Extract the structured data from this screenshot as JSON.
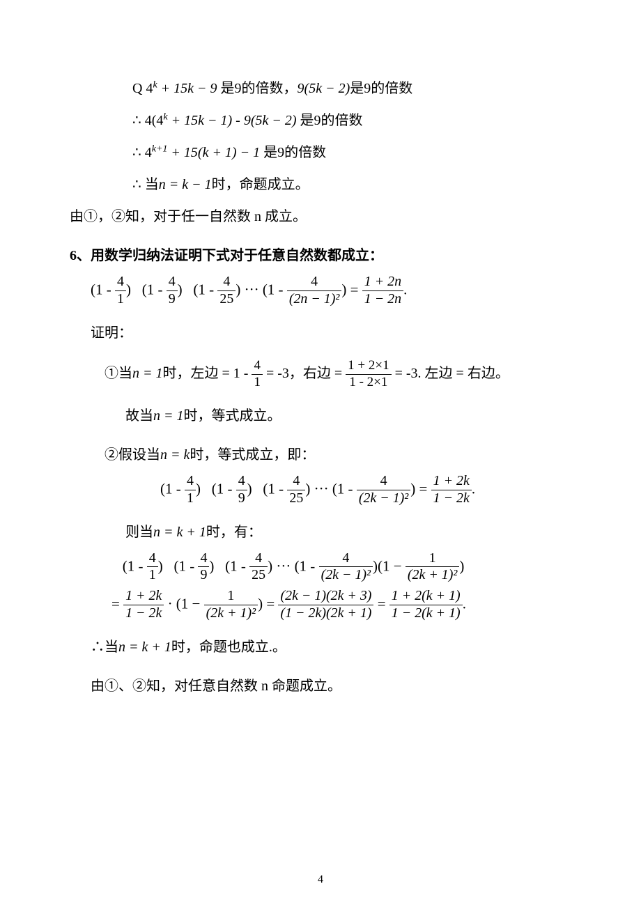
{
  "colors": {
    "background": "#ffffff",
    "text": "#000000",
    "rule": "#000000"
  },
  "typography": {
    "body_font_family": "SimSun, Songti SC, serif",
    "math_font_family": "Times New Roman, serif",
    "body_fontsize_pt": 15,
    "line_height": 1.9
  },
  "page_number": "4",
  "block1": {
    "l1_prefix": "Q",
    "l1_math_a": "4",
    "l1_math_a_sup": "k",
    "l1_math_rest": " + 15k − 9",
    "l1_cn_a": "是9的倍数，",
    "l1_math_b": "9(5k − 2)",
    "l1_cn_b": "是9的倍数",
    "l2_prefix": "∴",
    "l2_math": "4(4",
    "l2_math_sup": "k",
    "l2_math_rest": " + 15k − 1) - 9(5k − 2)   ",
    "l2_cn": "是9的倍数",
    "l3_prefix": "∴",
    "l3_math_a": "4",
    "l3_math_a_sup": "k+1",
    "l3_math_rest": " + 15(k + 1) − 1",
    "l3_cn": "是9的倍数",
    "l4_prefix": "∴",
    "l4_cn_a": "当",
    "l4_math": "n = k − 1",
    "l4_cn_b": "时，命题成立。"
  },
  "conclusion1": "由①，②知，对于任一自然数 n 成立。",
  "q6_title": "6、用数学归纳法证明下式对于任意自然数都成立：",
  "q6_eq": {
    "f1_num": "4",
    "f1_den": "1",
    "f2_num": "4",
    "f2_den": "9",
    "f3_num": "4",
    "f3_den": "25",
    "f4_num": "4",
    "f4_den": "(2n − 1)²",
    "rhs_num": "1 + 2n",
    "rhs_den": "1 − 2n",
    "trail": "."
  },
  "proof_label": "证明：",
  "step1": {
    "prefix": "①当",
    "math_a": "n = 1",
    "cn_a": "时，左边 = 1 - ",
    "f_num": "4",
    "f_den": "1",
    "cn_b": " = -3，右边 = ",
    "rhs_num": "1 + 2×1",
    "rhs_den": "1 - 2×1",
    "cn_c": " = -3. 左边 = 右边。"
  },
  "step1b": {
    "cn_a": "故当",
    "math": "n = 1",
    "cn_b": "时，等式成立。"
  },
  "step2": {
    "prefix": "②假设当",
    "math": "n = k",
    "cn": "时，等式成立，即："
  },
  "step2_eq": {
    "f1_num": "4",
    "f1_den": "1",
    "f2_num": "4",
    "f2_den": "9",
    "f3_num": "4",
    "f3_den": "25",
    "f4_num": "4",
    "f4_den": "(2k − 1)²",
    "rhs_num": "1 + 2k",
    "rhs_den": "1 − 2k",
    "trail": "."
  },
  "step3": {
    "cn_a": "则当",
    "math": "n = k + 1",
    "cn_b": "时，有："
  },
  "step3_eq_l1": {
    "f1_num": "4",
    "f1_den": "1",
    "f2_num": "4",
    "f2_den": "9",
    "f3_num": "4",
    "f3_den": "25",
    "f4_num": "4",
    "f4_den": "(2k − 1)²",
    "f5_num": "1",
    "f5_den": "(2k + 1)²"
  },
  "step3_eq_l2": {
    "fa_num": "1 + 2k",
    "fa_den": "1 − 2k",
    "fb_num": "1",
    "fb_den": "(2k + 1)²",
    "fc_num": "(2k − 1)(2k + 3)",
    "fc_den": "(1 − 2k)(2k + 1)",
    "fd_num": "1 + 2(k + 1)",
    "fd_den": "1 − 2(k + 1)",
    "trail": "."
  },
  "step4": {
    "prefix": "∴当",
    "math": "n = k + 1",
    "cn": "时，命题也成立.。"
  },
  "conclusion2": "由①、②知，对任意自然数 n 命题成立。"
}
